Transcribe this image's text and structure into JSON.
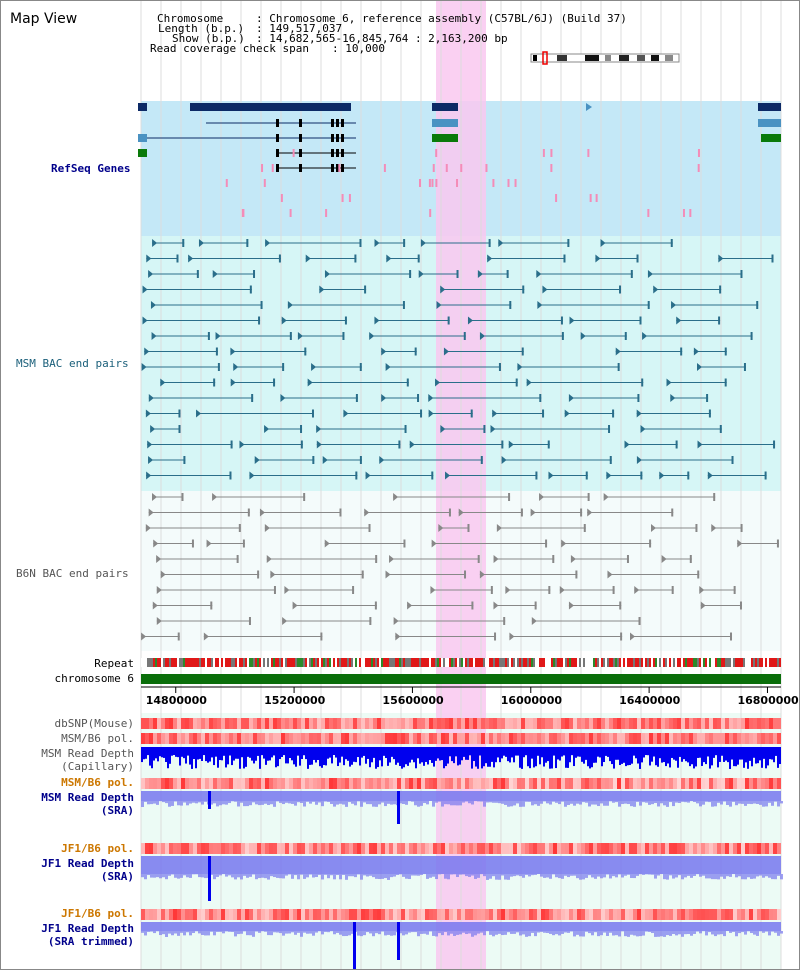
{
  "title": "Map View",
  "header": {
    "chromosome_label": "Chromosome",
    "chromosome_value": ": Chromosome 6, reference assembly (C57BL/6J) (Build 37)",
    "length_label": "Length (b.p.)",
    "length_value": ": 149,517,037",
    "show_label": "Show (b.p.)",
    "show_value": ": 14,682,565-16,845,764 : 2,163,200 bp",
    "span_label": "Read coverage check span",
    "span_value": ": 10,000"
  },
  "tracks": {
    "refseq": "RefSeq Genes",
    "msm_bac": "MSM BAC end pairs",
    "b6n_bac": "B6N BAC end pairs",
    "repeat": "Repeat",
    "chromosome": "chromosome 6",
    "dbsnp": "dbSNP(Mouse)",
    "msm_b6_pol_1": "MSM/B6 pol.",
    "msm_read_depth_cap_1": "MSM Read Depth",
    "msm_read_depth_cap_2": "(Capillary)",
    "msm_b6_pol_2": "MSM/B6 pol.",
    "msm_read_depth_sra_1": "MSM Read Depth",
    "msm_read_depth_sra_2": "(SRA)",
    "jf1_b6_pol_1": "JF1/B6 pol.",
    "jf1_read_depth_sra_1": "JF1 Read Depth",
    "jf1_read_depth_sra_2": "(SRA)",
    "jf1_b6_pol_2": "JF1/B6 pol.",
    "jf1_read_depth_trim_1": "JF1 Read Depth",
    "jf1_read_depth_trim_2": "(SRA trimmed)"
  },
  "axis_ticks": [
    {
      "label": "14800000",
      "pos": 14800000
    },
    {
      "label": "15200000",
      "pos": 15200000
    },
    {
      "label": "15600000",
      "pos": 15600000
    },
    {
      "label": "16000000",
      "pos": 16000000
    },
    {
      "label": "16400000",
      "pos": 16400000
    },
    {
      "label": "16800000",
      "pos": 16800000
    }
  ],
  "colors": {
    "highlight": "#f9c8f0",
    "refseq_bg": "#c4e8f7",
    "bac_bg": "#d6f6f6",
    "gene_dark": "#0c2a66",
    "gene_light": "#4a92c2",
    "gene_green": "#0a7a0a",
    "msm_line": "#2a6e8a",
    "b6n_line": "#888888",
    "chromosome": "#0a6e0a",
    "depth_blue": "#0000ee",
    "sra_blue": "#7777ee",
    "label_navy": "#00008b",
    "label_orange": "#cc7700"
  }
}
